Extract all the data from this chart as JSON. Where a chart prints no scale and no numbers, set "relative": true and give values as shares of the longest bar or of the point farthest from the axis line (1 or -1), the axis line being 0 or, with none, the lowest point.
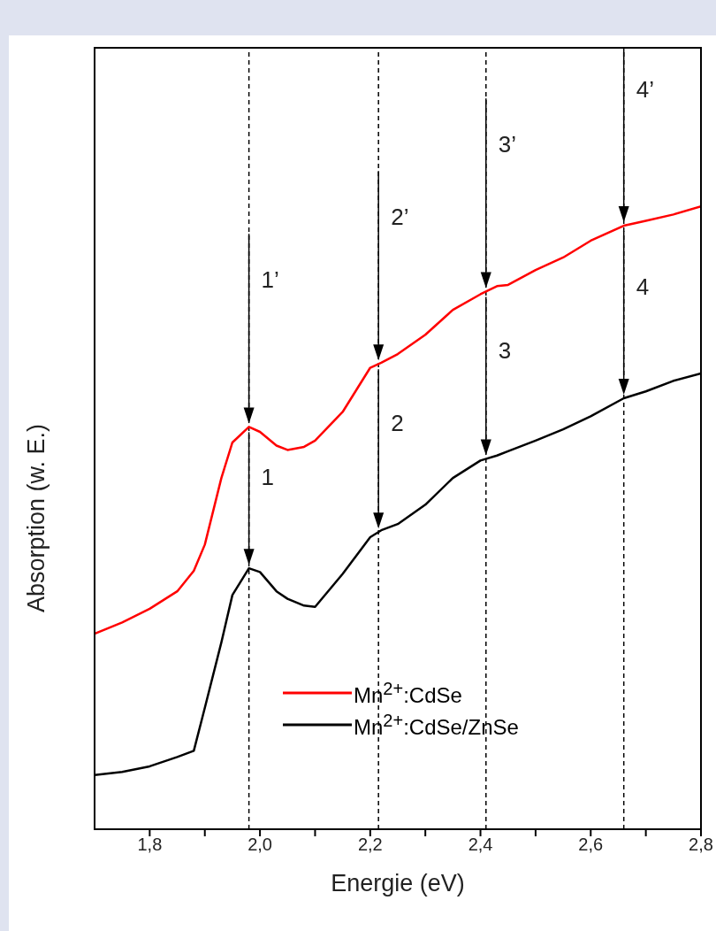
{
  "chart_data": {
    "type": "line",
    "xlabel": "Energie (eV)",
    "ylabel": "Absorption (w. E.)",
    "relative": true,
    "marker": "none",
    "grid": false,
    "legend": "bottom",
    "xlim": [
      1.7,
      2.8
    ],
    "xticks": [
      {
        "value": 1.8,
        "label": "1,8"
      },
      {
        "value": 1.9,
        "label": null
      },
      {
        "value": 2.0,
        "label": "2,0"
      },
      {
        "value": 2.1,
        "label": null
      },
      {
        "value": 2.2,
        "label": "2,2"
      },
      {
        "value": 2.3,
        "label": null
      },
      {
        "value": 2.4,
        "label": "2,4"
      },
      {
        "value": 2.5,
        "label": null
      },
      {
        "value": 2.6,
        "label": "2,6"
      },
      {
        "value": 2.7,
        "label": null
      },
      {
        "value": 2.8,
        "label": "2,8"
      }
    ],
    "x": [
      1.7,
      1.75,
      1.8,
      1.85,
      1.88,
      1.9,
      1.93,
      1.95,
      1.98,
      2.0,
      2.03,
      2.05,
      2.08,
      2.1,
      2.15,
      2.2,
      2.22,
      2.25,
      2.3,
      2.35,
      2.4,
      2.43,
      2.45,
      2.5,
      2.55,
      2.6,
      2.66,
      2.7,
      2.75,
      2.8
    ],
    "series": [
      {
        "name": "Mn$^{2+}$:CdSe",
        "color": "#ff0000",
        "values": [
          0.314,
          0.332,
          0.354,
          0.382,
          0.415,
          0.457,
          0.564,
          0.621,
          0.646,
          0.638,
          0.616,
          0.609,
          0.614,
          0.624,
          0.67,
          0.741,
          0.749,
          0.763,
          0.794,
          0.834,
          0.859,
          0.872,
          0.874,
          0.898,
          0.918,
          0.945,
          0.969,
          0.977,
          0.987,
          1.0
        ]
      },
      {
        "name": "Mn$^{2+}$:CdSe/ZnSe",
        "color": "#000000",
        "values": [
          0.087,
          0.092,
          0.101,
          0.116,
          0.126,
          0.195,
          0.3,
          0.376,
          0.419,
          0.413,
          0.382,
          0.37,
          0.359,
          0.357,
          0.41,
          0.469,
          0.48,
          0.49,
          0.521,
          0.564,
          0.592,
          0.6,
          0.607,
          0.624,
          0.642,
          0.663,
          0.692,
          0.703,
          0.72,
          0.732
        ]
      }
    ],
    "ref_lines": [
      {
        "axis": "x",
        "value": 1.98,
        "color": "#000000",
        "line_style": "dashed"
      },
      {
        "axis": "x",
        "value": 2.215,
        "color": "#000000",
        "line_style": "dashed"
      },
      {
        "axis": "x",
        "value": 2.41,
        "color": "#000000",
        "line_style": "dashed"
      },
      {
        "axis": "x",
        "value": 2.66,
        "color": "#000000",
        "line_style": "dashed"
      }
    ],
    "annotations": [
      "1’",
      "1",
      "2’",
      "2",
      "3’",
      "3",
      "4’",
      "4"
    ]
  }
}
